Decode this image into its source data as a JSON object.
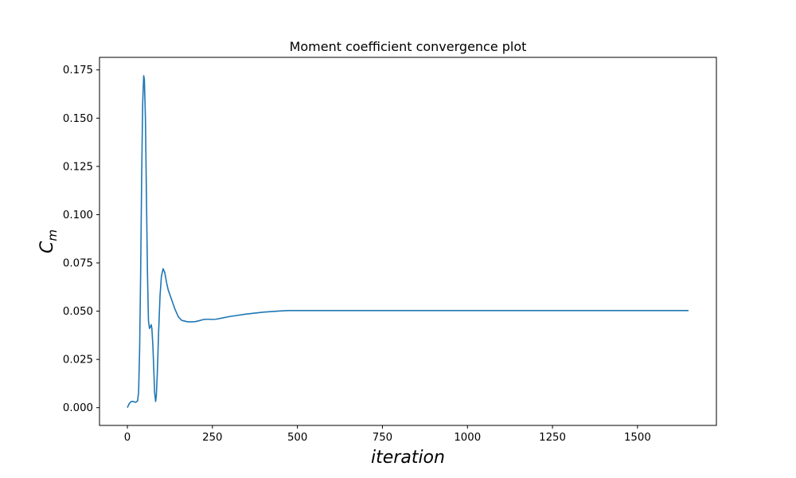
{
  "chart_data": {
    "type": "line",
    "title": "Moment coefficient convergence plot",
    "xlabel": "iteration",
    "ylabel": "C",
    "ylabel_subscript": "m",
    "xlim": [
      -82,
      1732
    ],
    "ylim": [
      -0.0092,
      0.1815
    ],
    "xticks": [
      0,
      250,
      500,
      750,
      1000,
      1250,
      1500
    ],
    "xtick_labels": [
      "0",
      "250",
      "500",
      "750",
      "1000",
      "1250",
      "1500"
    ],
    "yticks": [
      0.0,
      0.025,
      0.05,
      0.075,
      0.1,
      0.125,
      0.15,
      0.175
    ],
    "ytick_labels": [
      "0.000",
      "0.025",
      "0.050",
      "0.075",
      "0.100",
      "0.125",
      "0.150",
      "0.175"
    ],
    "grid": false,
    "line_color": "#1f77b4",
    "series": [
      {
        "x": [
          0,
          5,
          10,
          15,
          20,
          25,
          30,
          33,
          36,
          39,
          42,
          45,
          48,
          50,
          53,
          56,
          59,
          62,
          65,
          68,
          70,
          72,
          75,
          78,
          80,
          83,
          85,
          88,
          92,
          96,
          100,
          105,
          110,
          115,
          120,
          130,
          140,
          150,
          160,
          170,
          175,
          180,
          190,
          200,
          210,
          220,
          230,
          240,
          250,
          260,
          280,
          300,
          350,
          400,
          450,
          475,
          500,
          700,
          1000,
          1300,
          1650
        ],
        "y": [
          0.0,
          0.002,
          0.003,
          0.0033,
          0.003,
          0.0028,
          0.0035,
          0.008,
          0.03,
          0.07,
          0.12,
          0.158,
          0.172,
          0.17,
          0.15,
          0.11,
          0.07,
          0.045,
          0.041,
          0.042,
          0.043,
          0.041,
          0.032,
          0.018,
          0.008,
          0.0032,
          0.006,
          0.018,
          0.04,
          0.058,
          0.068,
          0.072,
          0.07,
          0.065,
          0.061,
          0.056,
          0.051,
          0.047,
          0.0452,
          0.0448,
          0.0446,
          0.0445,
          0.0445,
          0.0446,
          0.045,
          0.0455,
          0.0458,
          0.0458,
          0.0457,
          0.0458,
          0.0465,
          0.0472,
          0.0485,
          0.0495,
          0.0501,
          0.0503,
          0.0503,
          0.0503,
          0.0503,
          0.0503,
          0.0503
        ]
      }
    ]
  }
}
